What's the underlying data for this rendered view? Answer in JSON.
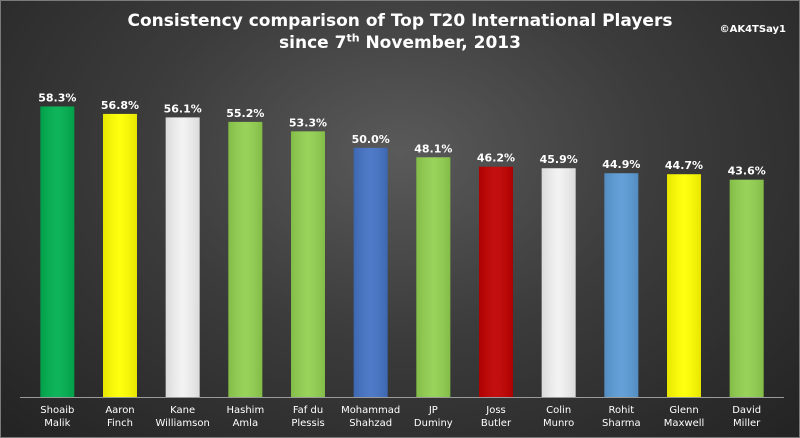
{
  "credit": "©AK4TSay1",
  "title_line1": "Consistency comparison of Top T20 International Players",
  "title_line2_pre": "since 7",
  "title_line2_sup": "th",
  "title_line2_post": " November, 2013",
  "chart_data": {
    "type": "bar",
    "title": "Consistency comparison of Top T20 International Players since 7th November, 2013",
    "categories": [
      [
        "Shoaib",
        "Malik"
      ],
      [
        "Aaron",
        "Finch"
      ],
      [
        "Kane",
        "Williamson"
      ],
      [
        "Hashim",
        "Amla"
      ],
      [
        "Faf du",
        "Plessis"
      ],
      [
        "Mohammad",
        "Shahzad"
      ],
      [
        "JP",
        "Duminy"
      ],
      [
        "Joss",
        "Butler"
      ],
      [
        "Colin",
        "Munro"
      ],
      [
        "Rohit",
        "Sharma"
      ],
      [
        "Glenn",
        "Maxwell"
      ],
      [
        "David",
        "Miller"
      ]
    ],
    "values": [
      58.3,
      56.8,
      56.1,
      55.2,
      53.3,
      50.0,
      48.1,
      46.2,
      45.9,
      44.9,
      44.7,
      43.6
    ],
    "value_labels": [
      "58.3%",
      "56.8%",
      "56.1%",
      "55.2%",
      "53.3%",
      "50.0%",
      "48.1%",
      "46.2%",
      "45.9%",
      "44.9%",
      "44.7%",
      "43.6%"
    ],
    "colors": [
      "#00b050",
      "#ffff00",
      "#f2f2f2",
      "#92d050",
      "#92d050",
      "#4472c4",
      "#92d050",
      "#c00000",
      "#f2f2f2",
      "#5b9bd5",
      "#ffff00",
      "#92d050"
    ],
    "ylim": [
      0,
      62
    ],
    "xlabel": "",
    "ylabel": "",
    "grid": false,
    "legend": "none"
  }
}
